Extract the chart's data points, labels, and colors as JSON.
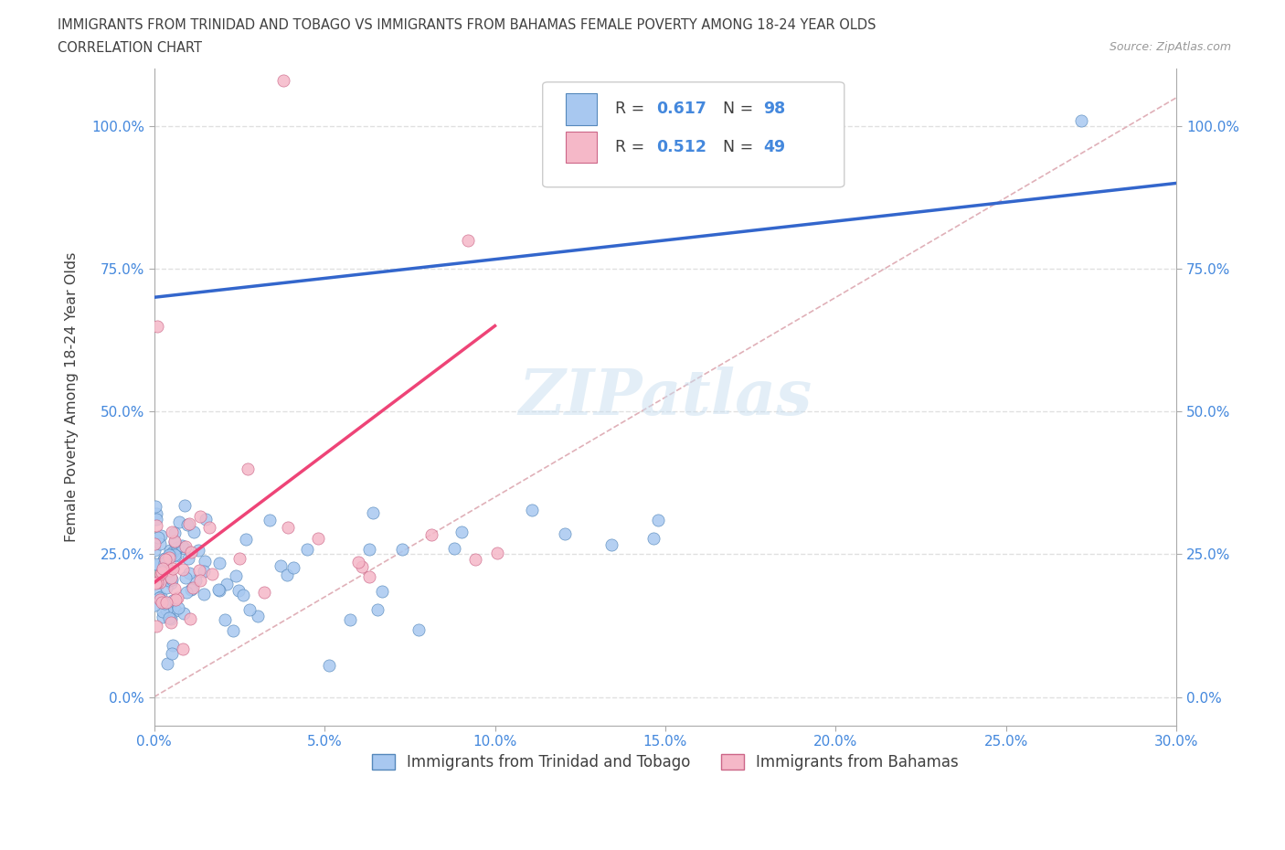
{
  "title_line1": "IMMIGRANTS FROM TRINIDAD AND TOBAGO VS IMMIGRANTS FROM BAHAMAS FEMALE POVERTY AMONG 18-24 YEAR OLDS",
  "title_line2": "CORRELATION CHART",
  "source_text": "Source: ZipAtlas.com",
  "ylabel": "Female Poverty Among 18-24 Year Olds",
  "xlim": [
    0.0,
    0.3
  ],
  "ylim": [
    -0.05,
    1.1
  ],
  "xticks": [
    0.0,
    0.05,
    0.1,
    0.15,
    0.2,
    0.25,
    0.3
  ],
  "xticklabels": [
    "0.0%",
    "5.0%",
    "10.0%",
    "15.0%",
    "20.0%",
    "25.0%",
    "30.0%"
  ],
  "yticks": [
    0.0,
    0.25,
    0.5,
    0.75,
    1.0
  ],
  "yticklabels": [
    "0.0%",
    "25.0%",
    "50.0%",
    "75.0%",
    "100.0%"
  ],
  "blue_color": "#a8c8f0",
  "blue_edge_color": "#5588bb",
  "pink_color": "#f5b8c8",
  "pink_edge_color": "#cc6688",
  "blue_line_color": "#3366cc",
  "pink_line_color": "#ee4477",
  "ref_line_color": "#e0b0b8",
  "R_blue": 0.617,
  "N_blue": 98,
  "R_pink": 0.512,
  "N_pink": 49,
  "legend_label_blue": "Immigrants from Trinidad and Tobago",
  "legend_label_pink": "Immigrants from Bahamas",
  "watermark": "ZIPatlas",
  "bg_color": "#ffffff",
  "grid_color": "#dddddd",
  "title_color": "#404040",
  "axis_color": "#aaaaaa",
  "tick_color": "#4488dd",
  "blue_trend_x0": 0.0,
  "blue_trend_y0": 0.7,
  "blue_trend_x1": 0.3,
  "blue_trend_y1": 0.9,
  "pink_trend_x0": 0.0,
  "pink_trend_y0": 0.2,
  "pink_trend_x1": 0.1,
  "pink_trend_y1": 0.65,
  "ref_line_x0": 0.0,
  "ref_line_y0": 0.0,
  "ref_line_x1": 0.3,
  "ref_line_y1": 1.05
}
